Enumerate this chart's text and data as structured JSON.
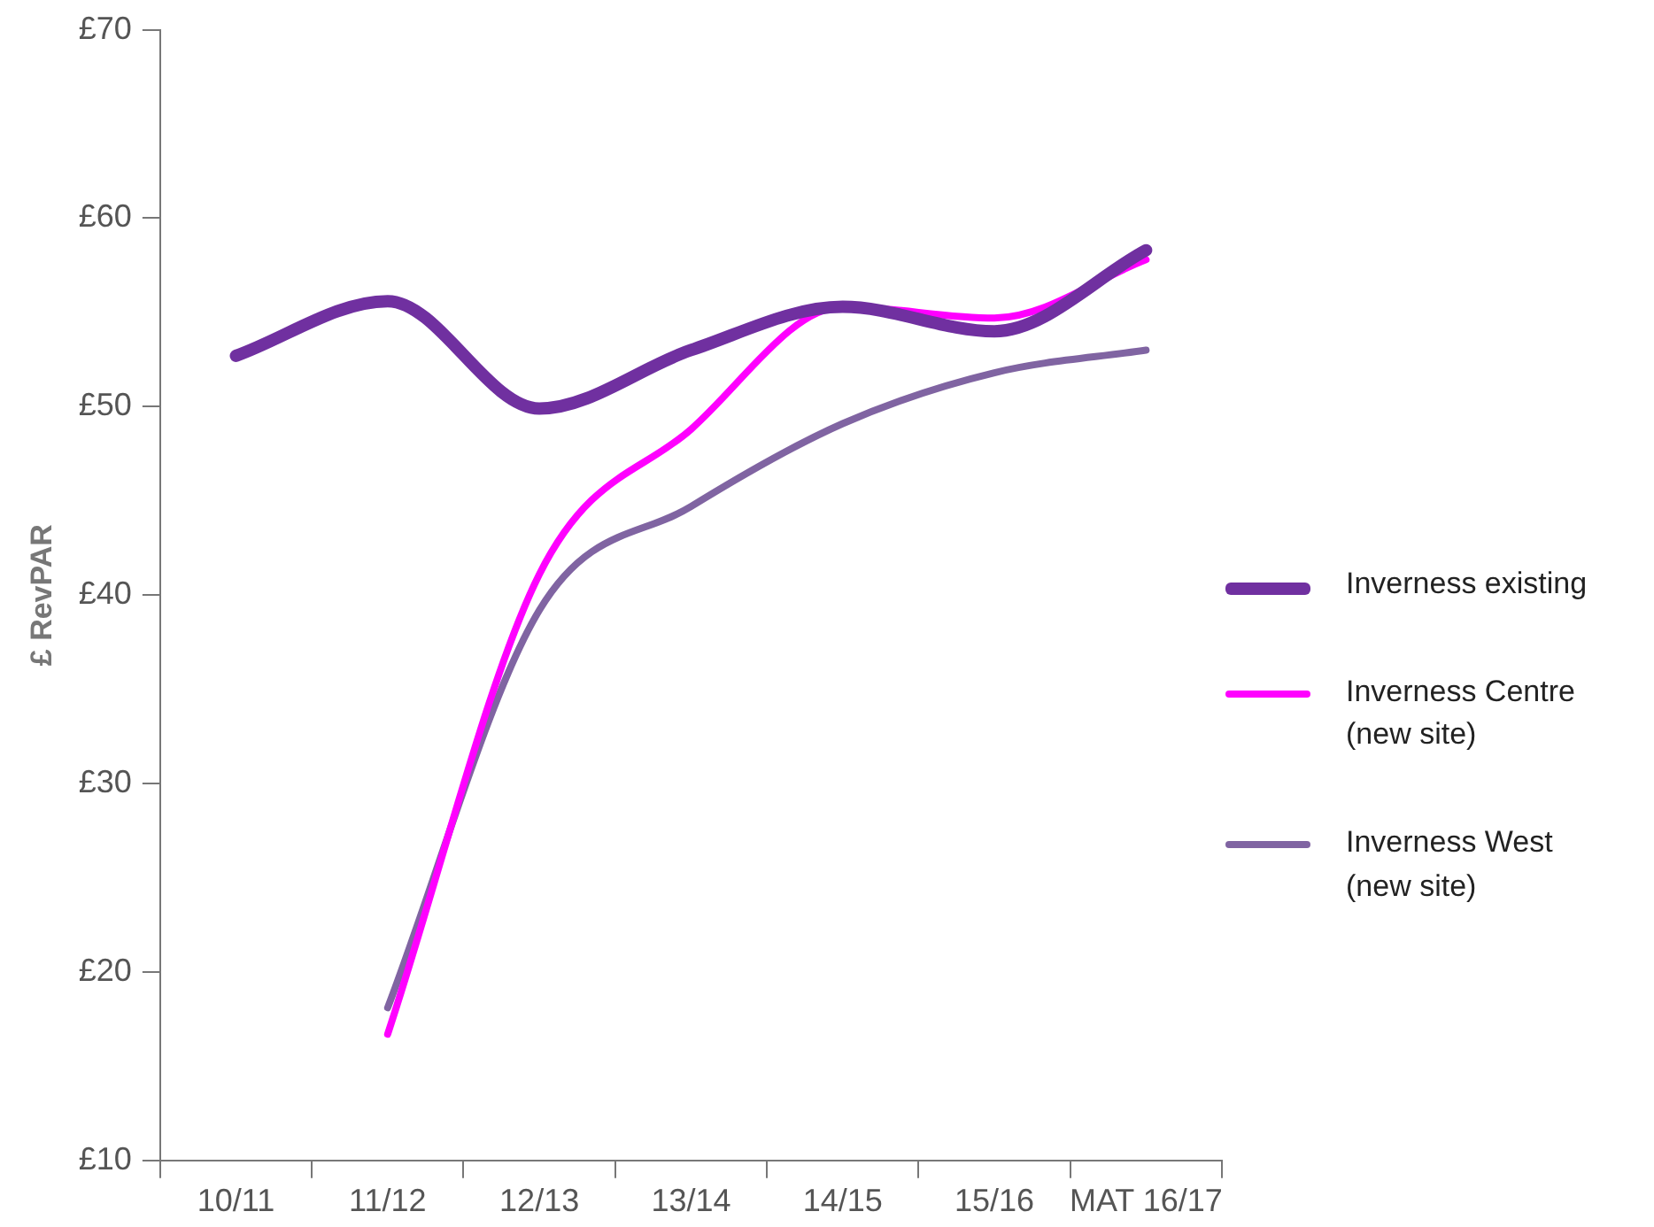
{
  "chart_data": {
    "type": "line",
    "ylabel": "£ RevPAR",
    "categories": [
      "10/11",
      "11/12",
      "12/13",
      "13/14",
      "14/15",
      "15/16",
      "MAT 16/17"
    ],
    "series": [
      {
        "name": "Inverness existing",
        "color": "#7030a0",
        "values": [
          52.7,
          55.6,
          49.9,
          53.0,
          55.3,
          54.0,
          58.3
        ]
      },
      {
        "name": "Inverness Centre (new site)",
        "color": "#ff00ff",
        "values": [
          null,
          16.7,
          41.1,
          48.8,
          55.3,
          54.7,
          57.8
        ]
      },
      {
        "name": "Inverness West (new site)",
        "color": "#8064a2",
        "values": [
          null,
          18.1,
          39.2,
          44.7,
          49.1,
          51.8,
          53.0
        ]
      }
    ],
    "ylim": [
      10,
      70
    ],
    "yticks": [
      {
        "value": 10,
        "label": "£10"
      },
      {
        "value": 20,
        "label": "£20"
      },
      {
        "value": 30,
        "label": "£30"
      },
      {
        "value": 40,
        "label": "£40"
      },
      {
        "value": 50,
        "label": "£50"
      },
      {
        "value": 60,
        "label": "£60"
      },
      {
        "value": 70,
        "label": "£70"
      }
    ],
    "grid": false,
    "legend": "right",
    "marker": "none"
  }
}
